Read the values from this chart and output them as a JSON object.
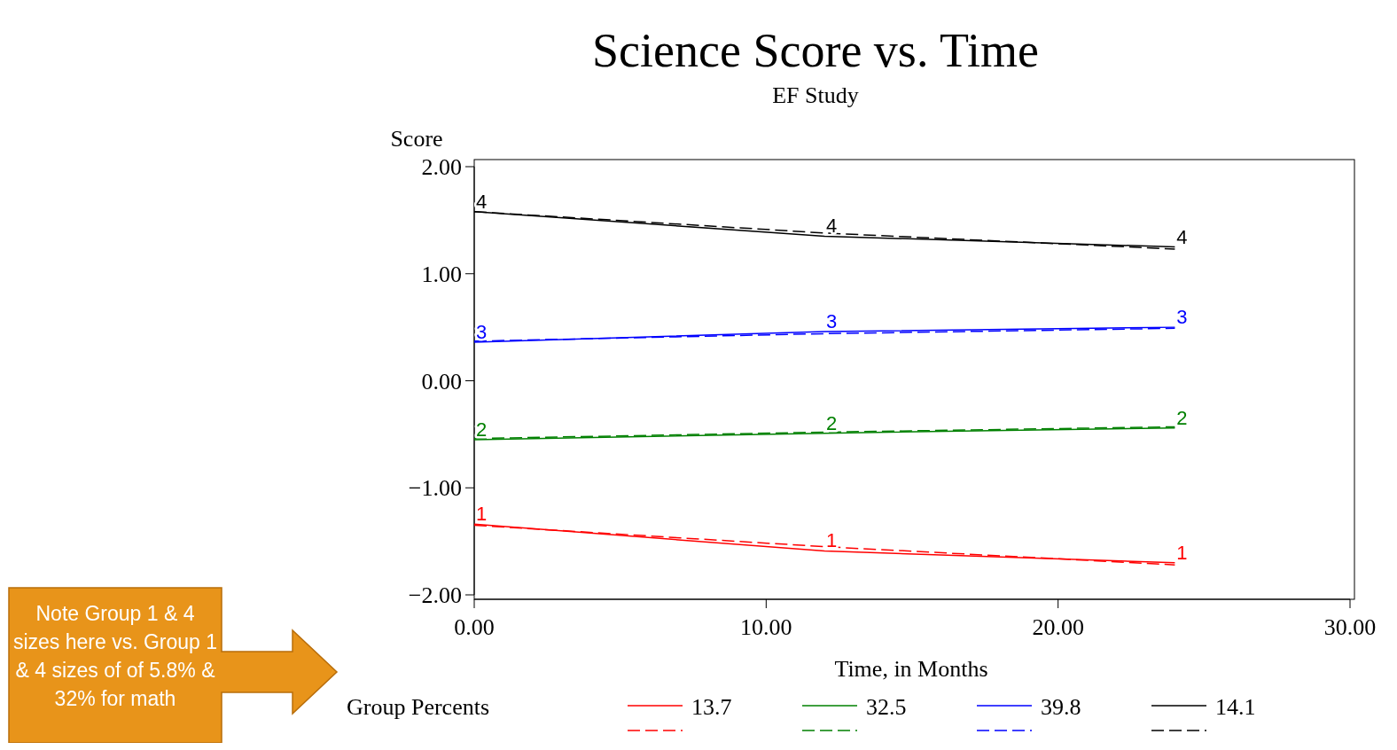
{
  "chart_data": {
    "type": "line",
    "title": "Science Score vs. Time",
    "subtitle": "EF Study",
    "xlabel": "Time, in Months",
    "ylabel": "Score",
    "legend_title": "Group Percents",
    "x": [
      0,
      12,
      24
    ],
    "series": [
      {
        "name": "13.7",
        "color": "#ff0000",
        "values": [
          -1.34,
          -1.59,
          -1.7
        ]
      },
      {
        "color": "#ff0000",
        "values": [
          -1.35,
          -1.55,
          -1.72
        ],
        "line_style": "dashed"
      },
      {
        "name": "32.5",
        "color": "#008000",
        "values": [
          -0.55,
          -0.49,
          -0.44
        ]
      },
      {
        "color": "#008000",
        "values": [
          -0.54,
          -0.48,
          -0.43
        ],
        "line_style": "dashed"
      },
      {
        "name": "39.8",
        "color": "#0000ff",
        "values": [
          0.36,
          0.46,
          0.5
        ]
      },
      {
        "color": "#0000ff",
        "values": [
          0.37,
          0.44,
          0.49
        ],
        "line_style": "dashed"
      },
      {
        "name": "14.1",
        "color": "#000000",
        "values": [
          1.58,
          1.35,
          1.25
        ]
      },
      {
        "color": "#000000",
        "values": [
          1.58,
          1.38,
          1.23
        ],
        "line_style": "dashed"
      }
    ],
    "xlim": [
      0,
      30
    ],
    "xticks": [
      {
        "value": 0,
        "label": "0.00"
      },
      {
        "value": 10,
        "label": "10.00"
      },
      {
        "value": 20,
        "label": "20.00"
      },
      {
        "value": 30,
        "label": "30.00"
      }
    ],
    "ylim": [
      -2,
      2
    ],
    "yticks": [
      {
        "value": -2,
        "label": "−2.00"
      },
      {
        "value": -1,
        "label": "−1.00"
      },
      {
        "value": 0,
        "label": "0.00"
      },
      {
        "value": 1,
        "label": "1.00"
      },
      {
        "value": 2,
        "label": "2.00"
      }
    ],
    "grid": false,
    "legend": "bottom",
    "line_style": "solid",
    "annotations": [
      {
        "text": "1",
        "x": 0,
        "y": -1.34
      },
      {
        "text": "1",
        "x": 12,
        "y": -1.59
      },
      {
        "text": "1",
        "x": 24,
        "y": -1.7
      },
      {
        "text": "2",
        "x": 0,
        "y": -0.55
      },
      {
        "text": "2",
        "x": 12,
        "y": -0.49
      },
      {
        "text": "2",
        "x": 24,
        "y": -0.44
      },
      {
        "text": "3",
        "x": 0,
        "y": 0.36
      },
      {
        "text": "3",
        "x": 12,
        "y": 0.46
      },
      {
        "text": "3",
        "x": 24,
        "y": 0.5
      },
      {
        "text": "4",
        "x": 0,
        "y": 1.58
      },
      {
        "text": "4",
        "x": 12,
        "y": 1.35
      },
      {
        "text": "4",
        "x": 24,
        "y": 1.25
      },
      "Note Group 1 & 4 sizes here vs. Group 1 & 4 sizes of of 5.8% & 32% for math"
    ]
  }
}
